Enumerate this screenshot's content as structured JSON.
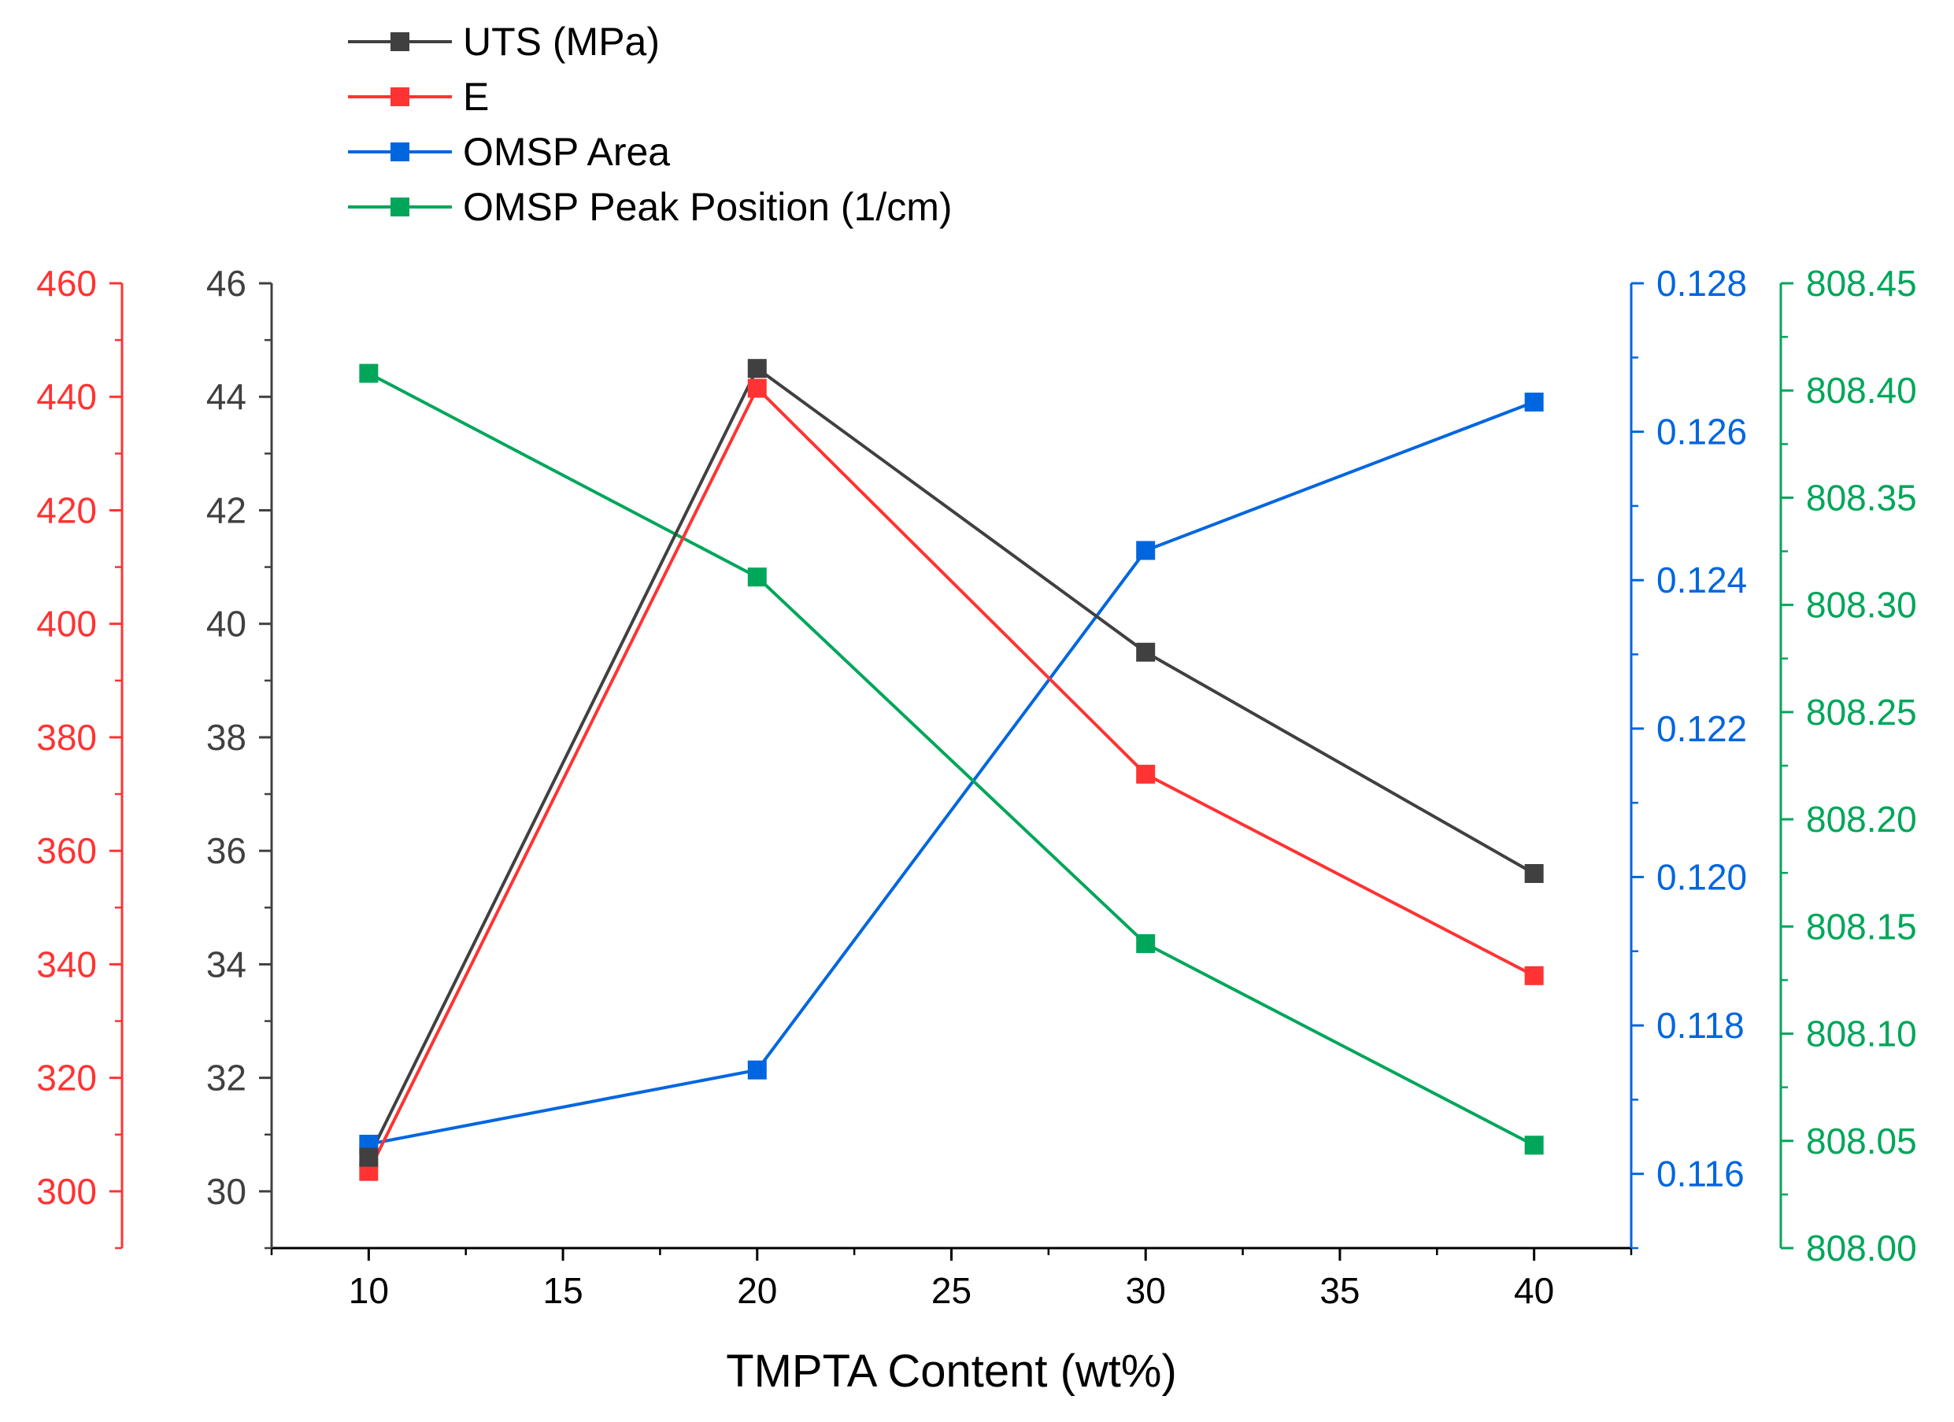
{
  "chart_data": {
    "type": "line",
    "title": "",
    "xlabel": "TMPTA Content (wt%)",
    "x": [
      10,
      20,
      30,
      40
    ],
    "xlim": [
      7.5,
      42.5
    ],
    "xticks": [
      10,
      15,
      20,
      25,
      30,
      35,
      40
    ],
    "xtick_labels": [
      "10",
      "15",
      "20",
      "25",
      "30",
      "35",
      "40"
    ],
    "legend_position": "top-left, above plot",
    "grid": false,
    "series": [
      {
        "name": "UTS (MPa)",
        "color": "#404040",
        "axis": "left-inner",
        "values": [
          30.6,
          44.5,
          39.5,
          35.6
        ]
      },
      {
        "name": "E",
        "color": "#ff3333",
        "axis": "left-outer",
        "values": [
          303.5,
          441.5,
          373.5,
          338.0
        ]
      },
      {
        "name": "OMSP Area",
        "color": "#0066e0",
        "axis": "right-inner",
        "values": [
          0.1164,
          0.1174,
          0.1244,
          0.1264
        ]
      },
      {
        "name": "OMSP Peak Position (1/cm)",
        "color": "#00a65a",
        "axis": "right-outer",
        "values": [
          808.408,
          808.313,
          808.142,
          808.048
        ]
      }
    ],
    "axes": {
      "left-inner": {
        "color": "#404040",
        "ylim": [
          29,
          46
        ],
        "ticks": [
          30,
          32,
          34,
          36,
          38,
          40,
          42,
          44,
          46
        ],
        "tick_labels": [
          "30",
          "32",
          "34",
          "36",
          "38",
          "40",
          "42",
          "44",
          "46"
        ]
      },
      "left-outer": {
        "color": "#ff3333",
        "ylim": [
          290,
          460
        ],
        "ticks": [
          300,
          320,
          340,
          360,
          380,
          400,
          420,
          440,
          460
        ],
        "tick_labels": [
          "300",
          "320",
          "340",
          "360",
          "380",
          "400",
          "420",
          "440",
          "460"
        ]
      },
      "right-inner": {
        "color": "#0066e0",
        "ylim": [
          0.115,
          0.128
        ],
        "ticks": [
          0.116,
          0.118,
          0.12,
          0.122,
          0.124,
          0.126,
          0.128
        ],
        "tick_labels": [
          "0.116",
          "0.118",
          "0.120",
          "0.122",
          "0.124",
          "0.126",
          "0.128"
        ]
      },
      "right-outer": {
        "color": "#00a65a",
        "ylim": [
          808.0,
          808.45
        ],
        "ticks": [
          808.0,
          808.05,
          808.1,
          808.15,
          808.2,
          808.25,
          808.3,
          808.35,
          808.4,
          808.45
        ],
        "tick_labels": [
          "808.00",
          "808.05",
          "808.10",
          "808.15",
          "808.20",
          "808.25",
          "808.30",
          "808.35",
          "808.40",
          "808.45"
        ]
      }
    }
  }
}
